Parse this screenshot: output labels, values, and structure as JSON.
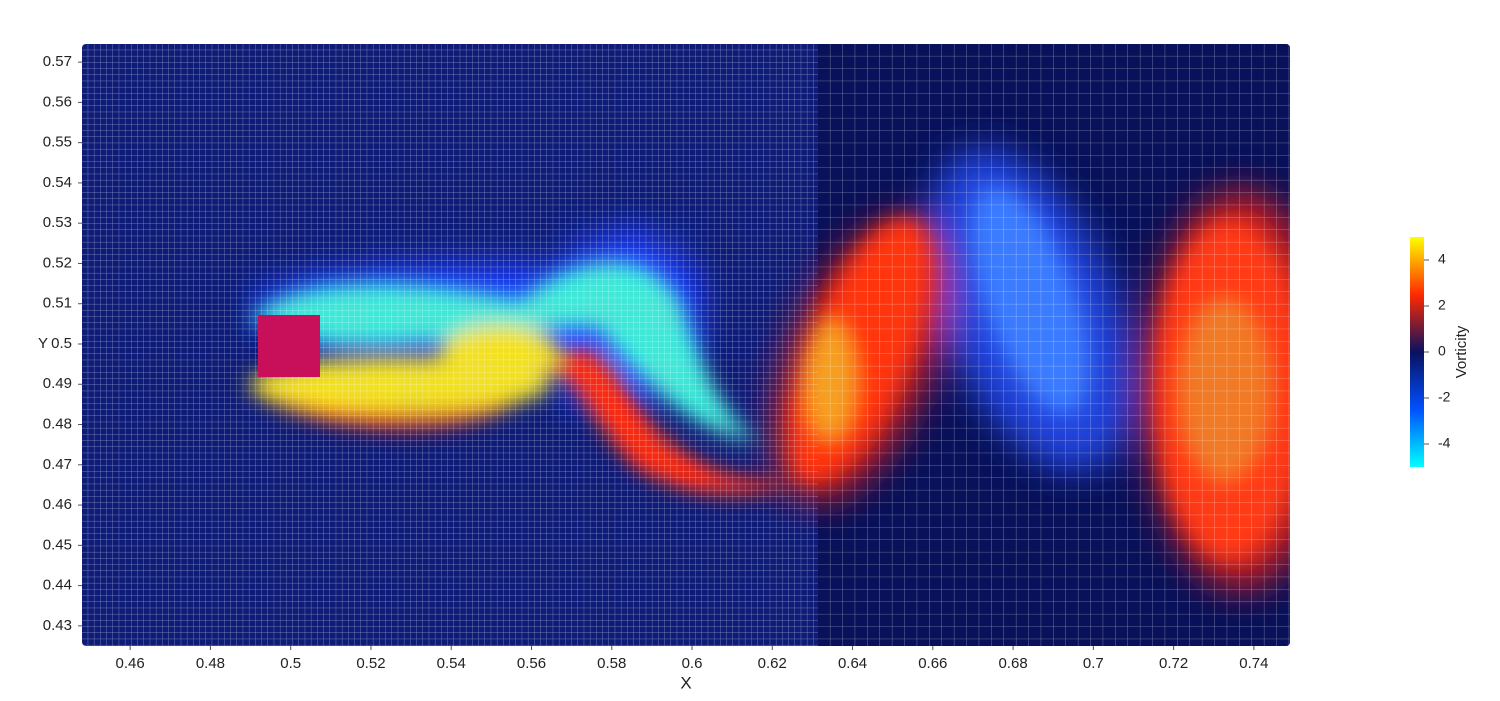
{
  "chart_data": {
    "type": "field",
    "xlabel": "X",
    "ylabel": "Y",
    "xlim": [
      0.448,
      0.749
    ],
    "xticks": [
      0.46,
      0.48,
      0.5,
      0.52,
      0.54,
      0.56,
      0.58,
      0.6,
      0.62,
      0.64,
      0.66,
      0.68,
      0.7,
      0.72,
      0.74
    ],
    "ylim": [
      0.425,
      0.5745
    ],
    "yticks": [
      0.43,
      0.44,
      0.45,
      0.46,
      0.47,
      0.48,
      0.49,
      0.5,
      0.51,
      0.52,
      0.53,
      0.54,
      0.55,
      0.56,
      0.57
    ],
    "colorbar": {
      "title": "Vorticity",
      "lim": [
        -5,
        5
      ],
      "ticks": [
        4,
        2,
        0,
        -2,
        -4
      ],
      "colors": [
        "#00ffff",
        "#0050ff",
        "#0a1160",
        "#ff2a00",
        "#ffff00"
      ]
    }
  }
}
